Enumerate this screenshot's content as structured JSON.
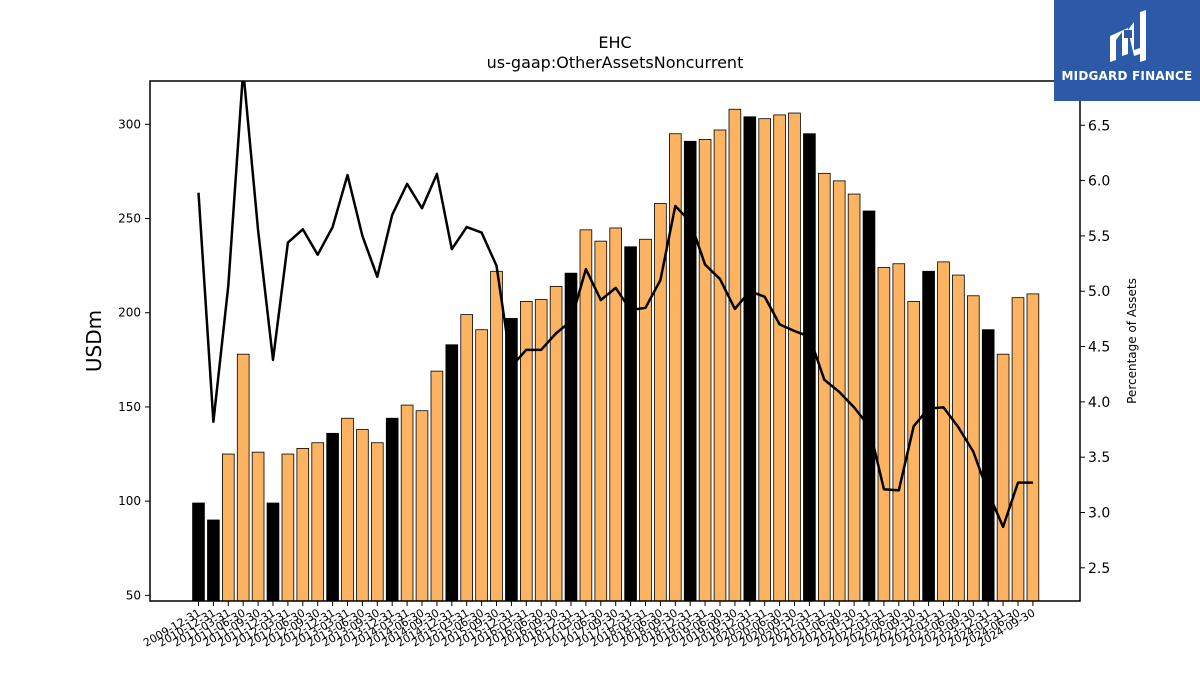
{
  "chart_data": {
    "type": "bar",
    "title": "EHC",
    "subtitle": "us-gaap:OtherAssetsNoncurrent",
    "ylabel": "USDm",
    "y2label": "Percentage of Assets",
    "ylim": [
      47,
      323
    ],
    "y2lim": [
      2.2,
      6.9
    ],
    "yticks": [
      50,
      100,
      150,
      200,
      250,
      300
    ],
    "y2ticks": [
      2.5,
      3.0,
      3.5,
      4.0,
      4.5,
      5.0,
      5.5,
      6.0,
      6.5
    ],
    "categories": [
      "2009-12-31",
      "2010-12-31",
      "2011-03-31",
      "2011-06-30",
      "2011-09-30",
      "2011-12-31",
      "2012-03-31",
      "2012-06-30",
      "2012-09-30",
      "2012-12-31",
      "2013-03-31",
      "2013-06-30",
      "2013-09-30",
      "2013-12-31",
      "2014-03-31",
      "2014-06-30",
      "2014-09-30",
      "2014-12-31",
      "2015-03-31",
      "2015-06-30",
      "2015-09-30",
      "2015-12-31",
      "2016-03-31",
      "2016-06-30",
      "2016-09-30",
      "2016-12-31",
      "2017-03-31",
      "2017-06-30",
      "2017-09-30",
      "2017-12-31",
      "2018-03-31",
      "2018-06-30",
      "2018-09-30",
      "2018-12-31",
      "2019-03-31",
      "2019-06-30",
      "2019-09-30",
      "2019-12-31",
      "2020-03-31",
      "2020-06-30",
      "2020-09-30",
      "2020-12-31",
      "2021-03-31",
      "2021-06-30",
      "2021-09-30",
      "2021-12-31",
      "2022-03-31",
      "2022-06-30",
      "2022-09-30",
      "2022-12-31",
      "2023-03-31",
      "2023-06-30",
      "2023-09-30",
      "2023-12-31",
      "2024-03-31",
      "2024-06-30",
      "2024-09-30"
    ],
    "series": [
      {
        "values": [
          99,
          90,
          125,
          178,
          126,
          99,
          125,
          128,
          131,
          136,
          144,
          138,
          131,
          144,
          151,
          148,
          169,
          183,
          199,
          191,
          222,
          197,
          206,
          207,
          214,
          221,
          244,
          238,
          245,
          235,
          239,
          258,
          295,
          291,
          292,
          297,
          308,
          304,
          303,
          305,
          306,
          295,
          274,
          270,
          263,
          254,
          224,
          226,
          206,
          222,
          227,
          220,
          209,
          191,
          178,
          208,
          210
        ],
        "annual_flags": [
          true,
          true,
          false,
          false,
          false,
          true,
          false,
          false,
          false,
          true,
          false,
          false,
          false,
          true,
          false,
          false,
          false,
          true,
          false,
          false,
          false,
          true,
          false,
          false,
          false,
          true,
          false,
          false,
          false,
          true,
          false,
          false,
          false,
          true,
          false,
          false,
          false,
          true,
          false,
          false,
          false,
          true,
          false,
          false,
          false,
          true,
          false,
          false,
          false,
          true,
          false,
          false,
          false,
          true,
          false,
          false,
          false
        ]
      },
      {
        "axis": "right",
        "values": [
          5.89,
          3.82,
          5.05,
          7.0,
          5.55,
          4.38,
          5.44,
          5.56,
          5.33,
          5.58,
          6.05,
          5.5,
          5.13,
          5.69,
          5.97,
          5.75,
          6.06,
          5.38,
          5.58,
          5.53,
          5.23,
          4.32,
          4.47,
          4.47,
          4.62,
          4.73,
          5.2,
          4.92,
          5.03,
          4.83,
          4.85,
          5.1,
          5.77,
          5.63,
          5.24,
          5.11,
          4.84,
          5.0,
          4.95,
          4.7,
          4.64,
          4.59,
          4.2,
          4.09,
          3.95,
          3.78,
          3.21,
          3.2,
          3.78,
          3.94,
          3.95,
          3.77,
          3.55,
          3.18,
          2.87,
          3.27,
          3.27
        ]
      }
    ],
    "colors": {
      "annual_bar": "#000000",
      "quarter_bar": "#fdb462",
      "line": "#000000"
    }
  },
  "logo": {
    "text": "MIDGARD FINANCE",
    "background": "#2d5aa8"
  }
}
